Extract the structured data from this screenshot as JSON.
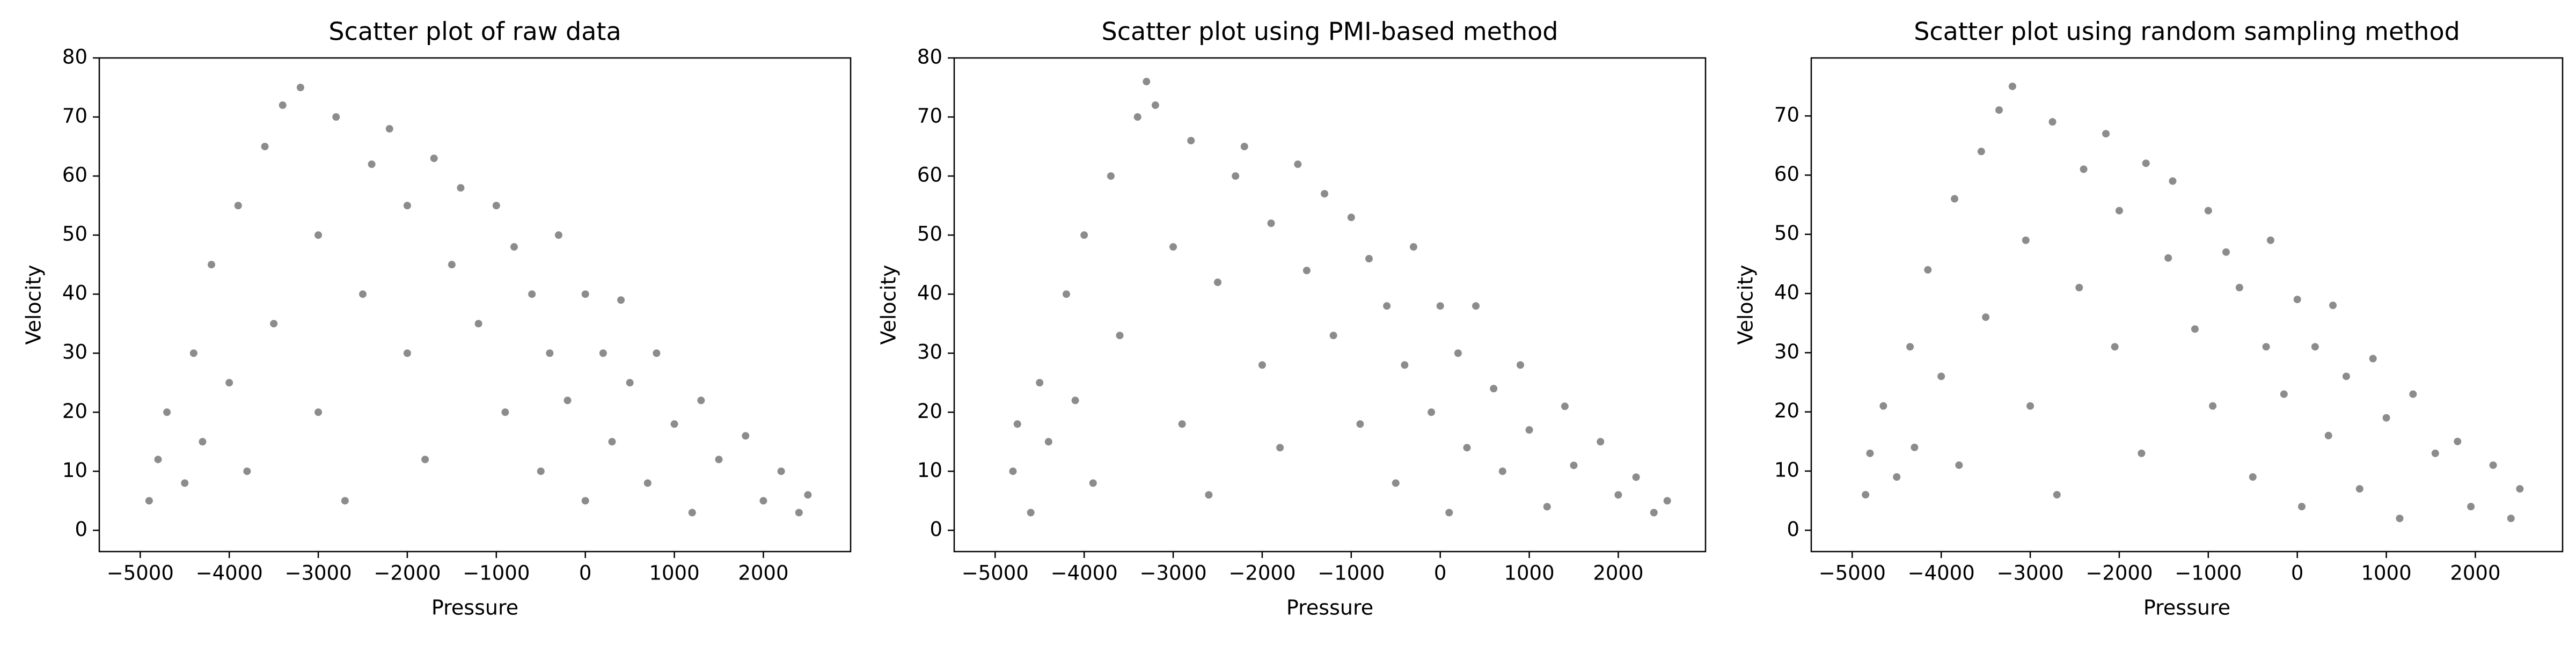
{
  "chart_data": [
    {
      "type": "scatter",
      "title": "Scatter plot of raw data",
      "x_label": "Pressure",
      "y_label": "Velocity",
      "color": "#000000",
      "xlim": [
        -5460,
        2980
      ],
      "ylim": [
        -3.6,
        80
      ],
      "xticks": [
        {
          "value": -5000,
          "label": "−5000"
        },
        {
          "value": -4000,
          "label": "−4000"
        },
        {
          "value": -3000,
          "label": "−3000"
        },
        {
          "value": -2000,
          "label": "−2000"
        },
        {
          "value": -1000,
          "label": "−1000"
        },
        0,
        1000,
        2000
      ],
      "yticks": [
        0,
        10,
        20,
        30,
        40,
        50,
        60,
        70,
        80
      ],
      "x": [
        -4900,
        -4800,
        -4700,
        -4500,
        -4400,
        -4300,
        -4200,
        -4000,
        -3900,
        -3800,
        -3600,
        -3500,
        -3400,
        -3200,
        -3000,
        -3000,
        -2800,
        -2700,
        -2500,
        -2400,
        -2200,
        -2000,
        -2000,
        -1800,
        -1700,
        -1500,
        -1400,
        -1200,
        -1000,
        -900,
        -800,
        -600,
        -500,
        -400,
        -300,
        -200,
        0,
        0,
        200,
        300,
        400,
        500,
        700,
        800,
        1000,
        1200,
        1300,
        1500,
        1800,
        2000,
        2200,
        2400,
        2500
      ],
      "y": [
        5,
        12,
        20,
        8,
        30,
        15,
        45,
        25,
        55,
        10,
        65,
        35,
        72,
        75,
        50,
        20,
        70,
        5,
        40,
        62,
        68,
        30,
        55,
        12,
        63,
        45,
        58,
        35,
        55,
        20,
        48,
        40,
        10,
        30,
        50,
        22,
        40,
        5,
        30,
        15,
        39,
        25,
        8,
        30,
        18,
        3,
        22,
        12,
        16,
        5,
        10,
        3,
        6
      ]
    },
    {
      "type": "scatter",
      "title": "Scatter plot using PMI-based method",
      "x_label": "Pressure",
      "y_label": "Velocity",
      "color": "#000000",
      "xlim": [
        -5460,
        2980
      ],
      "ylim": [
        -3.6,
        80
      ],
      "xticks": [
        {
          "value": -5000,
          "label": "−5000"
        },
        {
          "value": -4000,
          "label": "−4000"
        },
        {
          "value": -3000,
          "label": "−3000"
        },
        {
          "value": -2000,
          "label": "−2000"
        },
        {
          "value": -1000,
          "label": "−1000"
        },
        0,
        1000,
        2000
      ],
      "yticks": [
        0,
        10,
        20,
        30,
        40,
        50,
        60,
        70,
        80
      ],
      "x": [
        -4800,
        -4750,
        -4600,
        -4500,
        -4400,
        -4200,
        -4100,
        -4000,
        -3900,
        -3700,
        -3600,
        -3400,
        -3300,
        -3200,
        -3000,
        -2900,
        -2800,
        -2600,
        -2500,
        -2300,
        -2200,
        -2000,
        -1900,
        -1800,
        -1600,
        -1500,
        -1300,
        -1200,
        -1000,
        -900,
        -800,
        -600,
        -500,
        -400,
        -300,
        -100,
        0,
        100,
        200,
        300,
        400,
        600,
        700,
        900,
        1000,
        1200,
        1400,
        1500,
        1800,
        2000,
        2200,
        2400,
        2550
      ],
      "y": [
        10,
        18,
        3,
        25,
        15,
        40,
        22,
        50,
        8,
        60,
        33,
        70,
        76,
        72,
        48,
        18,
        66,
        6,
        42,
        60,
        65,
        28,
        52,
        14,
        62,
        44,
        57,
        33,
        53,
        18,
        46,
        38,
        8,
        28,
        48,
        20,
        38,
        3,
        30,
        14,
        38,
        24,
        10,
        28,
        17,
        4,
        21,
        11,
        15,
        6,
        9,
        3,
        5
      ]
    },
    {
      "type": "scatter",
      "title": "Scatter plot using random sampling method",
      "x_label": "Pressure",
      "y_label": "Velocity",
      "color": "#000000",
      "xlim": [
        -5460,
        2980
      ],
      "ylim": [
        -3.6,
        79.8
      ],
      "xticks": [
        {
          "value": -5000,
          "label": "−5000"
        },
        {
          "value": -4000,
          "label": "−4000"
        },
        {
          "value": -3000,
          "label": "−3000"
        },
        {
          "value": -2000,
          "label": "−2000"
        },
        {
          "value": -1000,
          "label": "−1000"
        },
        0,
        1000,
        2000
      ],
      "yticks": [
        0,
        10,
        20,
        30,
        40,
        50,
        60,
        70
      ],
      "x": [
        -4850,
        -4800,
        -4650,
        -4500,
        -4350,
        -4300,
        -4150,
        -4000,
        -3850,
        -3800,
        -3550,
        -3500,
        -3350,
        -3200,
        -3050,
        -3000,
        -2750,
        -2700,
        -2450,
        -2400,
        -2150,
        -2050,
        -2000,
        -1750,
        -1700,
        -1450,
        -1400,
        -1150,
        -1000,
        -950,
        -800,
        -650,
        -500,
        -350,
        -300,
        -150,
        0,
        50,
        200,
        350,
        400,
        550,
        700,
        850,
        1000,
        1150,
        1300,
        1550,
        1800,
        1950,
        2200,
        2400,
        2500
      ],
      "y": [
        6,
        13,
        21,
        9,
        31,
        14,
        44,
        26,
        56,
        11,
        64,
        36,
        71,
        75,
        49,
        21,
        69,
        6,
        41,
        61,
        67,
        31,
        54,
        13,
        62,
        46,
        59,
        34,
        54,
        21,
        47,
        41,
        9,
        31,
        49,
        23,
        39,
        4,
        31,
        16,
        38,
        26,
        7,
        29,
        19,
        2,
        23,
        13,
        15,
        4,
        11,
        2,
        7
      ]
    }
  ]
}
